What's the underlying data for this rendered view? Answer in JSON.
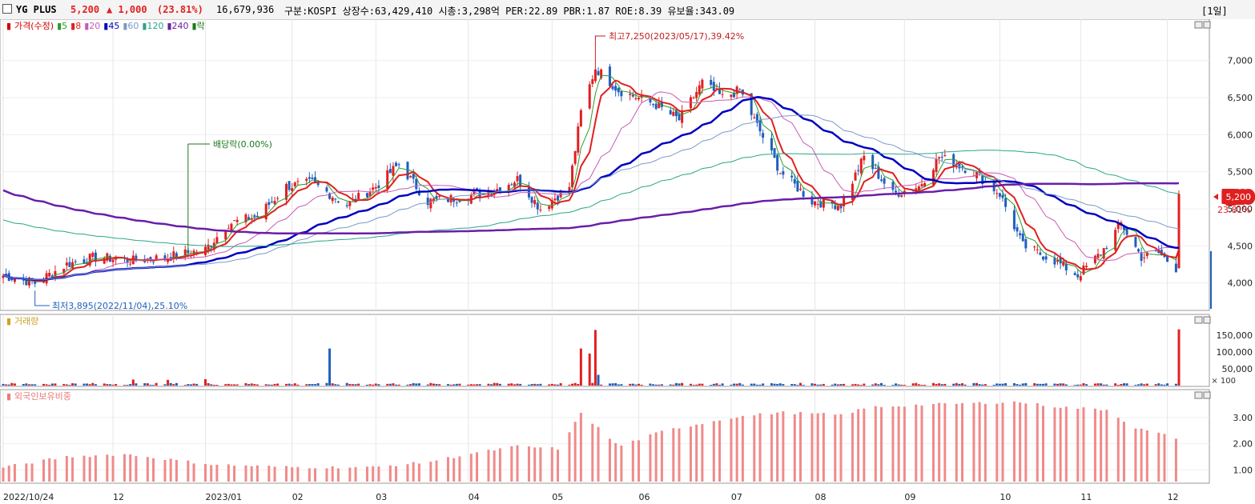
{
  "header": {
    "name": "YG PLUS",
    "price": "5,200",
    "change": "▲ 1,000",
    "change_pct": "(23.81%)",
    "volume": "16,679,936",
    "info": "구분:KOSPI 상장수:63,429,410 시총:3,298억 PER:22.89 PBR:1.87 ROE:8.39 유보율:343.09",
    "period": "[1일]",
    "up_color": "#e02020",
    "down_color": "#1f5fbf"
  },
  "price_panel": {
    "legend": [
      "가격(수정)",
      "5",
      "8",
      "20",
      "45",
      "60",
      "120",
      "240",
      "락"
    ],
    "legend_colors": [
      "#d00000",
      "#2a9d2a",
      "#e02020",
      "#c75bb5",
      "#0000c0",
      "#7a9ac8",
      "#2aa58a",
      "#6a1ea8",
      "#1a7a1a"
    ],
    "annotation_high": "최고7,250(2023/05/17),39.42%",
    "annotation_low": "최저3,895(2022/11/04),25.10%",
    "annotation_div": "배당락(0.00%)",
    "last_price_label": "5,200",
    "last_pct_label": "23.81%"
  },
  "volume_panel": {
    "legend": "거래량",
    "unit_label": "× 100"
  },
  "foreign_panel": {
    "legend": "외국인보유비중"
  },
  "x_axis": {
    "labels": [
      {
        "label": "2022/10/24",
        "date": "2022-10-24"
      },
      {
        "label": "12",
        "date": "2022-12-01"
      },
      {
        "label": "2023/01",
        "date": "2023-01-02"
      },
      {
        "label": "02",
        "date": "2023-02-01"
      },
      {
        "label": "03",
        "date": "2023-03-02"
      },
      {
        "label": "04",
        "date": "2023-04-03"
      },
      {
        "label": "05",
        "date": "2023-05-02"
      },
      {
        "label": "06",
        "date": "2023-06-01"
      },
      {
        "label": "07",
        "date": "2023-07-03"
      },
      {
        "label": "08",
        "date": "2023-08-01"
      },
      {
        "label": "09",
        "date": "2023-09-01"
      },
      {
        "label": "10",
        "date": "2023-10-04"
      },
      {
        "label": "11",
        "date": "2023-11-01"
      },
      {
        "label": "12",
        "date": "2023-12-01"
      }
    ]
  },
  "chart_data": [
    {
      "type": "candlestick",
      "panel": "price",
      "x_start": "2022-10-24",
      "x_end": "2023-12-05",
      "ylim": [
        3650,
        7450
      ],
      "yticks": [
        4000,
        4500,
        5000,
        5500,
        6000,
        6500,
        7000
      ],
      "ytick_labels": [
        "4,000",
        "4,500",
        "5,000",
        "5,500",
        "6,000",
        "6,500",
        "7,000"
      ],
      "grid": true,
      "close_points": [
        [
          "2022-10-24",
          4100
        ],
        [
          "2022-11-04",
          4000
        ],
        [
          "2022-11-15",
          4250
        ],
        [
          "2022-11-25",
          4350
        ],
        [
          "2022-12-08",
          4300
        ],
        [
          "2022-12-20",
          4350
        ],
        [
          "2023-01-02",
          4450
        ],
        [
          "2023-01-10",
          4800
        ],
        [
          "2023-01-20",
          4900
        ],
        [
          "2023-01-30",
          5300
        ],
        [
          "2023-02-08",
          5350
        ],
        [
          "2023-02-20",
          5050
        ],
        [
          "2023-03-02",
          5300
        ],
        [
          "2023-03-10",
          5600
        ],
        [
          "2023-03-20",
          5100
        ],
        [
          "2023-03-31",
          5150
        ],
        [
          "2023-04-12",
          5250
        ],
        [
          "2023-04-20",
          5400
        ],
        [
          "2023-04-28",
          5000
        ],
        [
          "2023-05-08",
          5300
        ],
        [
          "2023-05-12",
          6300
        ],
        [
          "2023-05-17",
          6900
        ],
        [
          "2023-05-25",
          6600
        ],
        [
          "2023-06-07",
          6400
        ],
        [
          "2023-06-15",
          6200
        ],
        [
          "2023-06-23",
          6700
        ],
        [
          "2023-06-30",
          6500
        ],
        [
          "2023-07-06",
          6600
        ],
        [
          "2023-07-11",
          6200
        ],
        [
          "2023-07-20",
          5500
        ],
        [
          "2023-07-31",
          5100
        ],
        [
          "2023-08-10",
          5050
        ],
        [
          "2023-08-18",
          5700
        ],
        [
          "2023-08-28",
          5200
        ],
        [
          "2023-09-06",
          5300
        ],
        [
          "2023-09-13",
          5700
        ],
        [
          "2023-09-25",
          5500
        ],
        [
          "2023-10-04",
          5200
        ],
        [
          "2023-10-12",
          4500
        ],
        [
          "2023-10-23",
          4300
        ],
        [
          "2023-10-31",
          4100
        ],
        [
          "2023-11-08",
          4400
        ],
        [
          "2023-11-15",
          4800
        ],
        [
          "2023-11-22",
          4350
        ],
        [
          "2023-11-28",
          4400
        ],
        [
          "2023-12-04",
          4200
        ],
        [
          "2023-12-05",
          5200
        ]
      ],
      "high": {
        "value": 7250,
        "date": "2023-05-17"
      },
      "low": {
        "value": 3895,
        "date": "2022-11-04"
      },
      "last": {
        "value": 5200,
        "date": "2023-12-05",
        "change_pct": 23.81
      },
      "dividend_ex_date": "2022-12-27",
      "moving_averages": [
        {
          "period": "5",
          "color": "#2a9d2a"
        },
        {
          "period": "8",
          "color": "#e02020"
        },
        {
          "period": "20",
          "color": "#c75bb5"
        },
        {
          "period": "45",
          "color": "#0000c0"
        },
        {
          "period": "60",
          "color": "#7a9ac8"
        },
        {
          "period": "120",
          "color": "#2aa58a"
        },
        {
          "period": "240",
          "color": "#6a1ea8"
        }
      ]
    },
    {
      "type": "bar",
      "panel": "volume",
      "ylim": [
        0,
        185000
      ],
      "yticks": [
        50000,
        100000,
        150000
      ],
      "ytick_labels": [
        "50,000",
        "100,000",
        "150,000"
      ],
      "spikes": [
        {
          "date": "2022-12-08",
          "value": 18000
        },
        {
          "date": "2022-12-20",
          "value": 17000
        },
        {
          "date": "2023-01-02",
          "value": 19000
        },
        {
          "date": "2023-02-14",
          "value": 110000
        },
        {
          "date": "2023-05-12",
          "value": 110000
        },
        {
          "date": "2023-05-15",
          "value": 95000
        },
        {
          "date": "2023-05-17",
          "value": 165000
        },
        {
          "date": "2023-05-18",
          "value": 32000
        },
        {
          "date": "2023-12-05",
          "value": 166800
        }
      ]
    },
    {
      "type": "bar",
      "panel": "foreign_ownership",
      "ylim": [
        0.55,
        3.7
      ],
      "yticks": [
        1.0,
        2.0,
        3.0
      ],
      "ytick_labels": [
        "1.00",
        "2.00",
        "3.00"
      ],
      "points": [
        [
          "2022-10-24",
          1.1
        ],
        [
          "2022-11-15",
          1.5
        ],
        [
          "2022-12-05",
          1.6
        ],
        [
          "2023-01-05",
          1.2
        ],
        [
          "2023-02-01",
          1.1
        ],
        [
          "2023-03-01",
          1.1
        ],
        [
          "2023-03-20",
          1.3
        ],
        [
          "2023-04-03",
          1.6
        ],
        [
          "2023-04-20",
          1.9
        ],
        [
          "2023-05-05",
          1.8
        ],
        [
          "2023-05-12",
          3.2
        ],
        [
          "2023-05-25",
          1.9
        ],
        [
          "2023-06-02",
          2.2
        ],
        [
          "2023-06-10",
          2.5
        ],
        [
          "2023-07-03",
          3.0
        ],
        [
          "2023-07-20",
          3.2
        ],
        [
          "2023-08-10",
          3.1
        ],
        [
          "2023-08-20",
          3.4
        ],
        [
          "2023-09-10",
          3.5
        ],
        [
          "2023-10-10",
          3.6
        ],
        [
          "2023-10-25",
          3.4
        ],
        [
          "2023-11-10",
          3.3
        ],
        [
          "2023-11-20",
          2.6
        ],
        [
          "2023-12-05",
          2.2
        ]
      ]
    }
  ]
}
